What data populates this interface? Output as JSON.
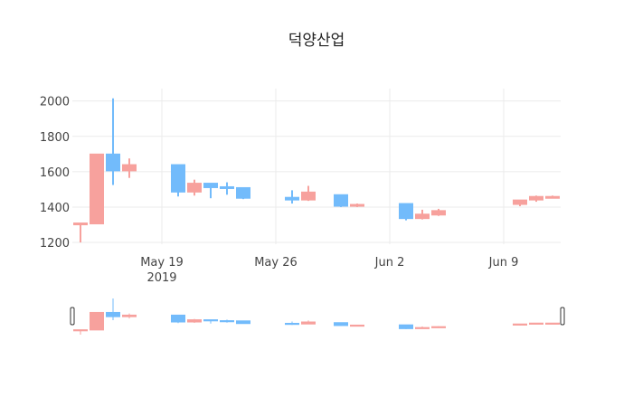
{
  "chart_data": {
    "type": "candlestick",
    "title": "덕양산업",
    "xlabel": "",
    "ylabel": "",
    "ylim": [
      1190,
      2070
    ],
    "xlim": [
      "2019-05-13T12:00",
      "2019-06-12T12:00"
    ],
    "grid": true,
    "yticks": [
      1200,
      1400,
      1600,
      1800,
      2000
    ],
    "xticks": [
      {
        "date": "2019-05-19",
        "label": "May 19",
        "sub": "2019"
      },
      {
        "date": "2019-05-26",
        "label": "May 26",
        "sub": ""
      },
      {
        "date": "2019-06-02",
        "label": "Jun 2",
        "sub": ""
      },
      {
        "date": "2019-06-09",
        "label": "Jun 9",
        "sub": ""
      }
    ],
    "colors": {
      "increasing": "#f7a19d",
      "decreasing": "#72bbfb"
    },
    "rangeslider": true,
    "data": [
      {
        "date": "2019-05-14",
        "open": 1305,
        "high": 1310,
        "low": 1200,
        "close": 1310
      },
      {
        "date": "2019-05-15",
        "open": 1305,
        "high": 1700,
        "low": 1305,
        "close": 1700
      },
      {
        "date": "2019-05-16",
        "open": 1700,
        "high": 2015,
        "low": 1525,
        "close": 1605
      },
      {
        "date": "2019-05-17",
        "open": 1605,
        "high": 1675,
        "low": 1565,
        "close": 1640
      },
      {
        "date": "2019-05-20",
        "open": 1640,
        "high": 1640,
        "low": 1460,
        "close": 1485
      },
      {
        "date": "2019-05-21",
        "open": 1485,
        "high": 1555,
        "low": 1465,
        "close": 1535
      },
      {
        "date": "2019-05-22",
        "open": 1535,
        "high": 1535,
        "low": 1450,
        "close": 1510
      },
      {
        "date": "2019-05-23",
        "open": 1515,
        "high": 1540,
        "low": 1470,
        "close": 1505
      },
      {
        "date": "2019-05-24",
        "open": 1510,
        "high": 1510,
        "low": 1445,
        "close": 1450
      },
      {
        "date": "2019-05-27",
        "open": 1455,
        "high": 1495,
        "low": 1420,
        "close": 1440
      },
      {
        "date": "2019-05-28",
        "open": 1440,
        "high": 1520,
        "low": 1435,
        "close": 1485
      },
      {
        "date": "2019-05-30",
        "open": 1470,
        "high": 1470,
        "low": 1400,
        "close": 1405
      },
      {
        "date": "2019-05-31",
        "open": 1410,
        "high": 1420,
        "low": 1400,
        "close": 1415
      },
      {
        "date": "2019-06-03",
        "open": 1420,
        "high": 1420,
        "low": 1325,
        "close": 1335
      },
      {
        "date": "2019-06-04",
        "open": 1335,
        "high": 1385,
        "low": 1330,
        "close": 1360
      },
      {
        "date": "2019-06-05",
        "open": 1355,
        "high": 1390,
        "low": 1350,
        "close": 1380
      },
      {
        "date": "2019-06-10",
        "open": 1415,
        "high": 1440,
        "low": 1405,
        "close": 1440
      },
      {
        "date": "2019-06-11",
        "open": 1440,
        "high": 1465,
        "low": 1430,
        "close": 1460
      },
      {
        "date": "2019-06-12",
        "open": 1455,
        "high": 1465,
        "low": 1450,
        "close": 1460
      }
    ]
  }
}
